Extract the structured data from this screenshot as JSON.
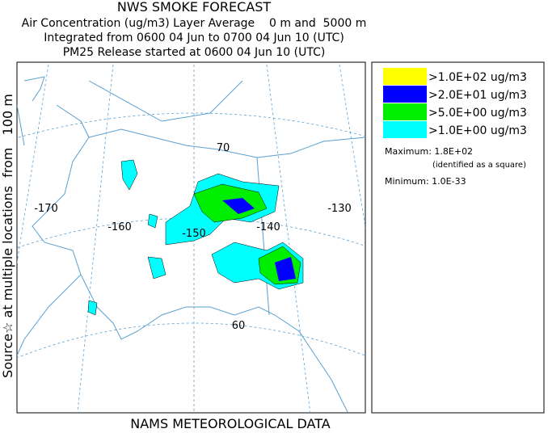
{
  "header": {
    "title": "NWS SMOKE FORECAST",
    "lines": [
      "Air Concentration (ug/m3) Layer Average    0 m and  5000 m",
      "Integrated from 0600 04 Jun to 0700 04 Jun 10 (UTC)",
      "PM25 Release started at 0600 04 Jun 10 (UTC)"
    ]
  },
  "side_label": "Source☆ at multiple locations  from   100 m",
  "map": {
    "lon_labels": [
      "-170",
      "-160",
      "-150",
      "-140",
      "-130"
    ],
    "lat_labels": [
      "70",
      "60"
    ]
  },
  "legend": {
    "items": [
      {
        "label": ">1.0E+02 ug/m3",
        "color": "#ffff00"
      },
      {
        "label": ">2.0E+01 ug/m3",
        "color": "#0000ff"
      },
      {
        "label": ">5.0E+00 ug/m3",
        "color": "#00ee00"
      },
      {
        "label": ">1.0E+00 ug/m3",
        "color": "#00ffff"
      }
    ],
    "maximum": "Maximum: 1.8E+02",
    "max_note": "(identified as a square)",
    "minimum": "Minimum: 1.0E-33"
  },
  "footer": "NAMS METEOROLOGICAL DATA"
}
